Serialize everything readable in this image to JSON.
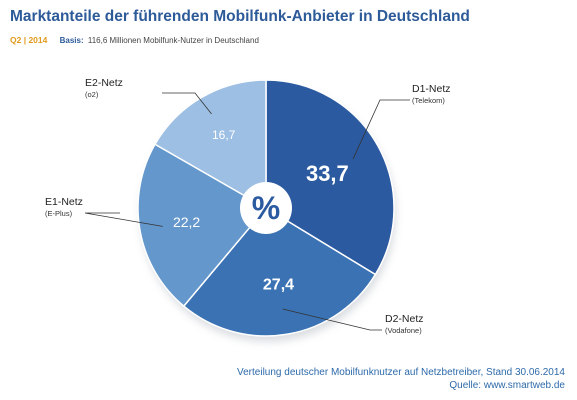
{
  "chart_data": {
    "type": "pie",
    "title": "Marktanteile der führenden Mobilfunk-Anbieter in Deutschland",
    "period": "Q2 | 2014",
    "basis_label": "Basis:",
    "basis_value": "116,6 Millionen Mobilfunk-Nutzer in Deutschland",
    "center_symbol": "%",
    "slices": [
      {
        "name": "D1-Netz",
        "sub": "(Telekom)",
        "value": 33.7,
        "label": "33,7",
        "color": "#2c5aa0"
      },
      {
        "name": "D2-Netz",
        "sub": "(Vodafone)",
        "value": 27.4,
        "label": "27,4",
        "color": "#3a72b3"
      },
      {
        "name": "E1-Netz",
        "sub": "(E-Plus)",
        "value": 22.2,
        "label": "22,2",
        "color": "#6497cc"
      },
      {
        "name": "E2-Netz",
        "sub": "(o2)",
        "value": 16.7,
        "label": "16,7",
        "color": "#9dbfe3"
      }
    ],
    "legend": "callout-lines"
  },
  "footer": {
    "line1": "Verteilung deutscher Mobilfunknutzer auf Netzbetreiber, Stand 30.06.2014",
    "line2": "Quelle: www.smartweb.de"
  }
}
